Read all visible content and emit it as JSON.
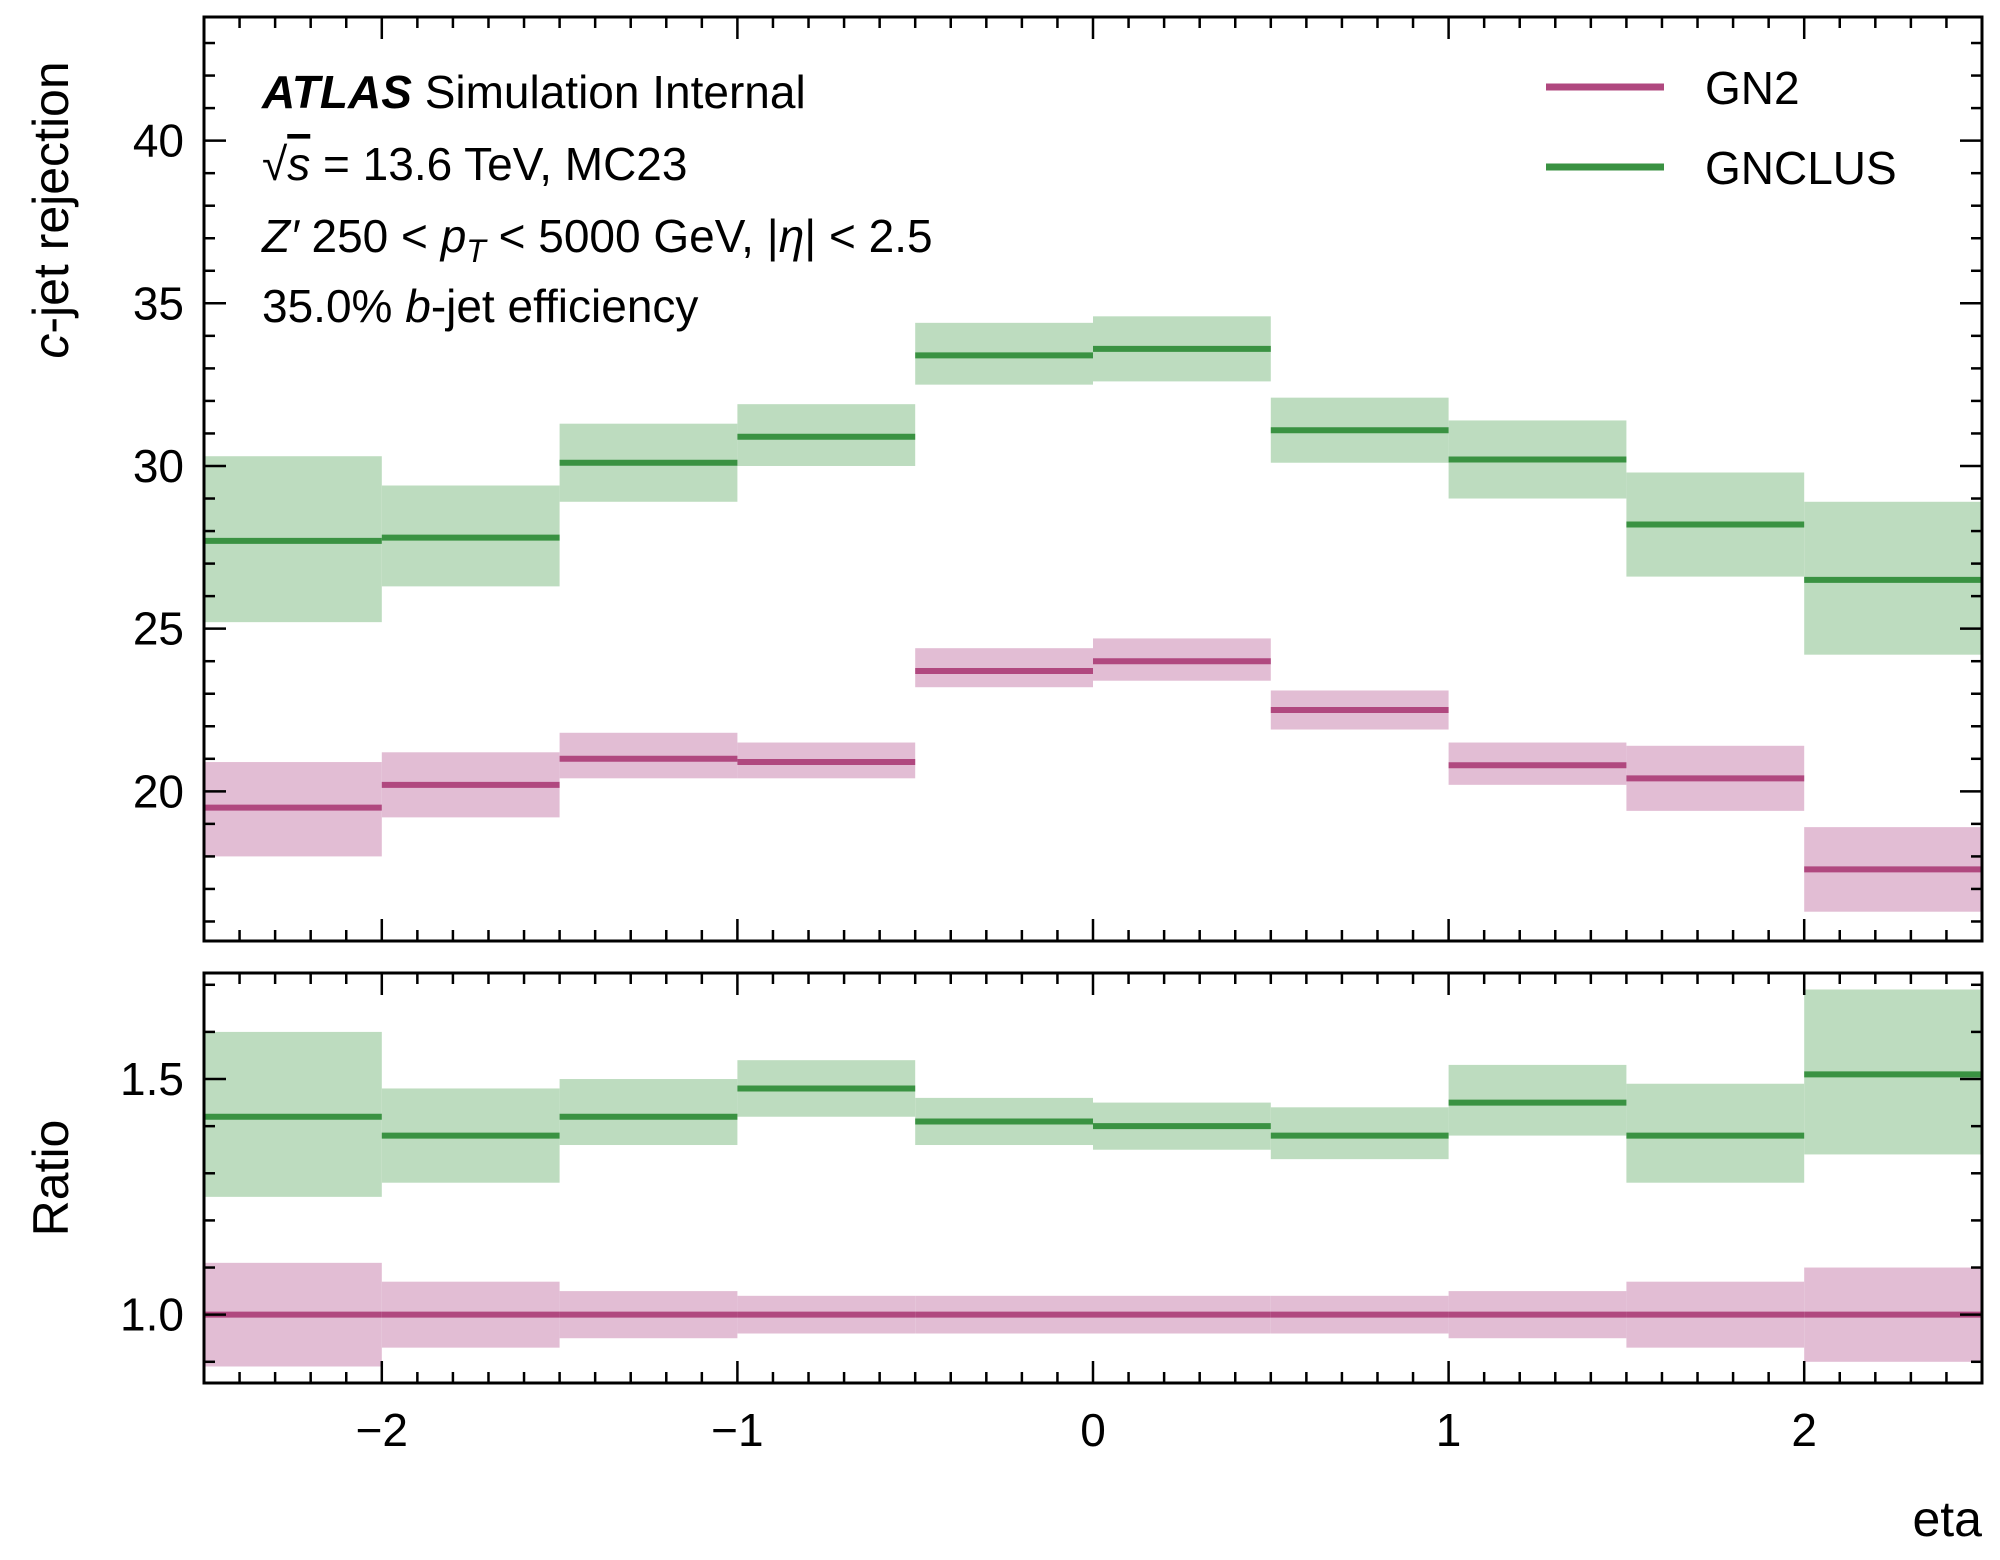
{
  "chart_data": {
    "type": "step",
    "annotation": {
      "brand": "ATLAS",
      "line1_rest": "Simulation Internal",
      "line2_sqrt": "√",
      "line2_s": "s",
      "line2_rest": " = 13.6 TeV, MC23",
      "line3_Z": "Z′",
      "line3_mid": " 250 < ",
      "line3_p": "p",
      "line3_sub": "T",
      "line3_mid2": " < 5000 GeV, |",
      "line3_eta": "η",
      "line3_end": "| < 2.5",
      "line4_pre": "35.0% ",
      "line4_b": "b",
      "line4_rest": "-jet efficiency"
    },
    "x_edges": [
      -2.5,
      -2.0,
      -1.5,
      -1.0,
      -0.5,
      0.0,
      0.5,
      1.0,
      1.5,
      2.0,
      2.5
    ],
    "xlabel": "eta",
    "xlim": [
      -2.5,
      2.5
    ],
    "x_ticks": [
      -2,
      -1,
      0,
      1,
      2
    ],
    "x_tick_labels": [
      "−2",
      "−1",
      "0",
      "1",
      "2"
    ],
    "top_panel": {
      "ylabel_c": "c",
      "ylabel_rest": "-jet rejection",
      "ylim": [
        15.4,
        43.8
      ],
      "y_ticks": [
        20,
        25,
        30,
        35,
        40
      ],
      "y_tick_labels": [
        "20",
        "25",
        "30",
        "35",
        "40"
      ],
      "series": [
        {
          "name": "GN2",
          "color": "#b0487f",
          "band_color": "#e2bdd4",
          "values": [
            19.5,
            20.2,
            21.0,
            20.9,
            23.7,
            24.0,
            22.5,
            20.8,
            20.4,
            17.6
          ],
          "err_low": [
            18.0,
            19.2,
            20.4,
            20.4,
            23.2,
            23.4,
            21.9,
            20.2,
            19.4,
            16.3
          ],
          "err_high": [
            20.9,
            21.2,
            21.8,
            21.5,
            24.4,
            24.7,
            23.1,
            21.5,
            21.4,
            18.9
          ]
        },
        {
          "name": "GNCLUS",
          "color": "#3a9242",
          "band_color": "#bddcbf",
          "values": [
            27.7,
            27.8,
            30.1,
            30.9,
            33.4,
            33.6,
            31.1,
            30.2,
            28.2,
            26.5
          ],
          "err_low": [
            25.2,
            26.3,
            28.9,
            30.0,
            32.5,
            32.6,
            30.1,
            29.0,
            26.6,
            24.2
          ],
          "err_high": [
            30.3,
            29.4,
            31.3,
            31.9,
            34.4,
            34.6,
            32.1,
            31.4,
            29.8,
            28.9
          ]
        }
      ]
    },
    "ratio_panel": {
      "ylabel": "Ratio",
      "ylim": [
        0.855,
        1.725
      ],
      "y_ticks": [
        1.0,
        1.5
      ],
      "y_tick_labels": [
        "1.0",
        "1.5"
      ],
      "series": [
        {
          "name": "GN2",
          "color": "#b0487f",
          "band_color": "#e2bdd4",
          "values": [
            1.0,
            1.0,
            1.0,
            1.0,
            1.0,
            1.0,
            1.0,
            1.0,
            1.0,
            1.0
          ],
          "err_low": [
            0.89,
            0.93,
            0.95,
            0.96,
            0.96,
            0.96,
            0.96,
            0.95,
            0.93,
            0.9
          ],
          "err_high": [
            1.11,
            1.07,
            1.05,
            1.04,
            1.04,
            1.04,
            1.04,
            1.05,
            1.07,
            1.1
          ]
        },
        {
          "name": "GNCLUS",
          "color": "#3a9242",
          "band_color": "#bddcbf",
          "values": [
            1.42,
            1.38,
            1.42,
            1.48,
            1.41,
            1.4,
            1.38,
            1.45,
            1.38,
            1.51
          ],
          "err_low": [
            1.25,
            1.28,
            1.36,
            1.42,
            1.36,
            1.35,
            1.33,
            1.38,
            1.28,
            1.34
          ],
          "err_high": [
            1.6,
            1.48,
            1.5,
            1.54,
            1.46,
            1.45,
            1.44,
            1.53,
            1.49,
            1.69
          ]
        }
      ]
    },
    "legend": {
      "placement": "top-right",
      "entries": [
        {
          "label": "GN2",
          "color": "#b0487f"
        },
        {
          "label": "GNCLUS",
          "color": "#3a9242"
        }
      ]
    },
    "grid": false
  }
}
